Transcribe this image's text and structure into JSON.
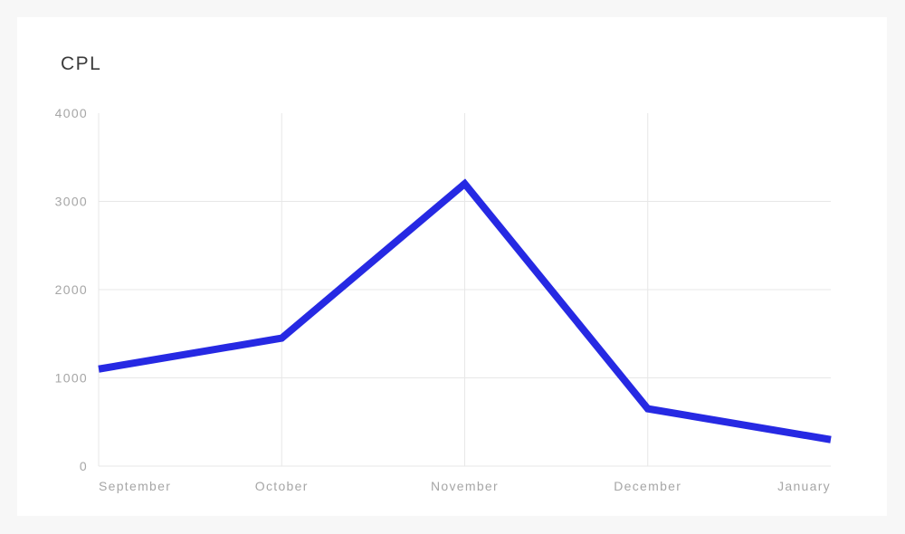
{
  "card": {
    "title": "CPL"
  },
  "colors": {
    "page_background": "#f7f7f7",
    "card_background": "#ffffff",
    "title_text": "#3b3b3b",
    "axis_label_text": "#a6a6a6",
    "gridline": "#e7e7e7",
    "line": "#2629e3"
  },
  "chart_data": {
    "type": "line",
    "title": "CPL",
    "categories": [
      "September",
      "October",
      "November",
      "December",
      "January"
    ],
    "values": [
      1100,
      1450,
      3200,
      650,
      300
    ],
    "xlabel": "",
    "ylabel": "",
    "ylim": [
      0,
      4000
    ],
    "yticks": [
      0,
      1000,
      2000,
      3000,
      4000
    ],
    "grid": "on",
    "legend": "none",
    "line_color": "#2629e3",
    "line_width": 8
  }
}
